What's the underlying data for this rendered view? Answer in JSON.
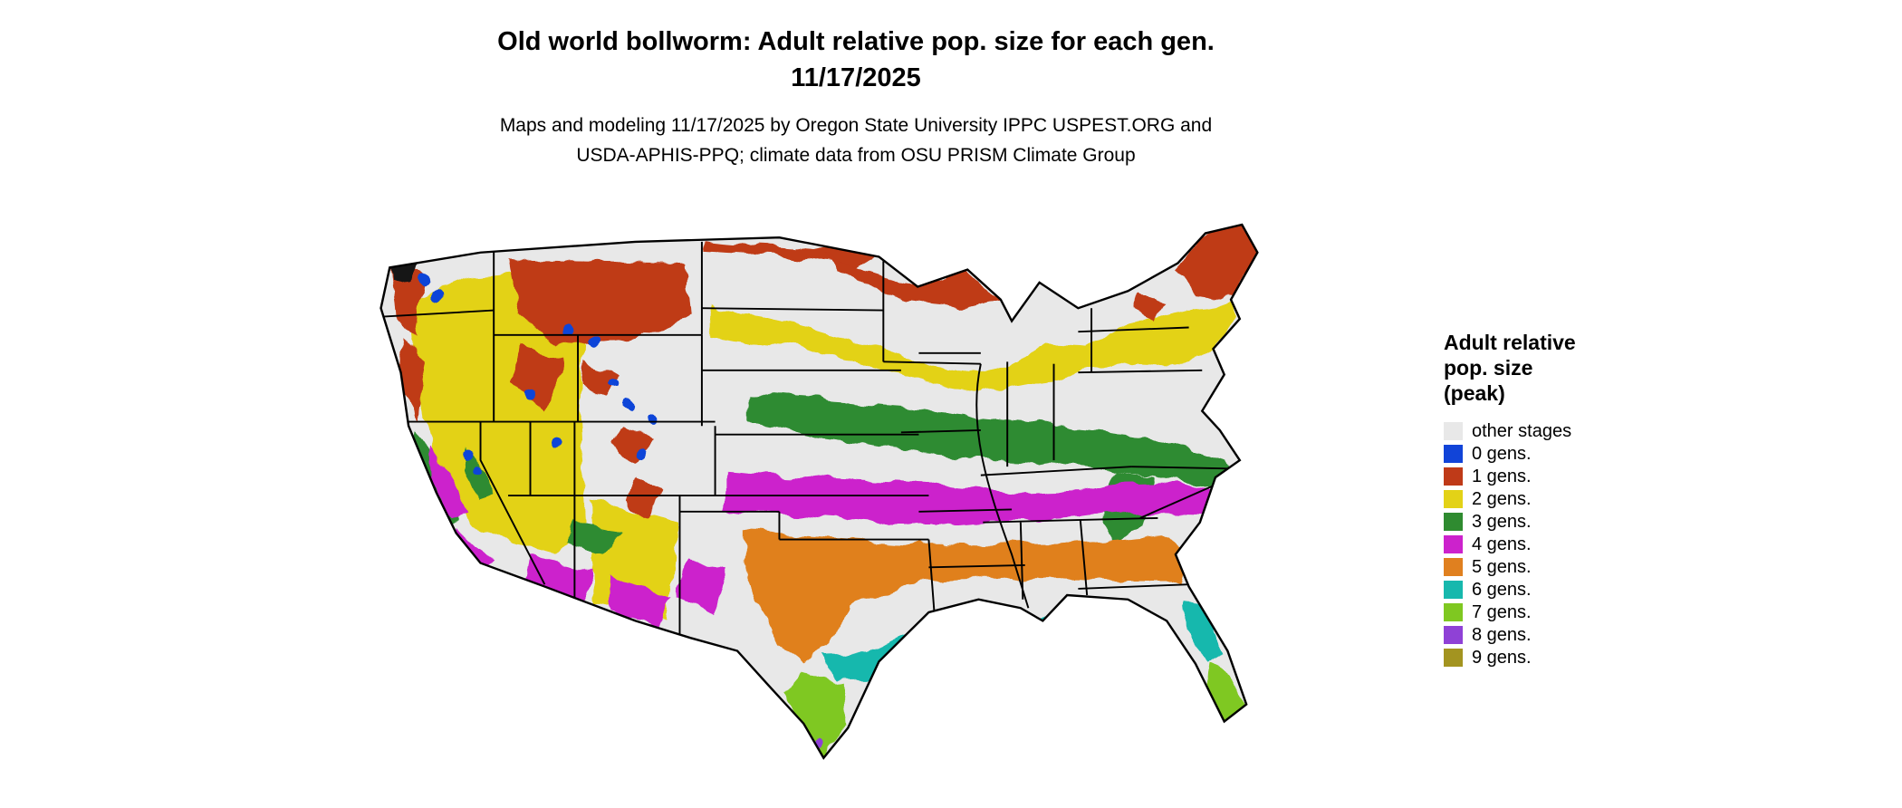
{
  "title": {
    "line1": "Old world bollworm: Adult relative pop. size for each gen.",
    "line2": "11/17/2025"
  },
  "subtitle": {
    "line1": "Maps and modeling 11/17/2025 by Oregon State University IPPC USPEST.ORG and",
    "line2": "USDA-APHIS-PPQ; climate data from OSU PRISM Climate Group"
  },
  "legend": {
    "title_lines": [
      "Adult relative",
      "pop. size",
      "(peak)"
    ],
    "items": [
      {
        "key": "other",
        "label": "other stages",
        "color": "#e8e8e8"
      },
      {
        "key": "g0",
        "label": "0 gens.",
        "color": "#1144d8"
      },
      {
        "key": "g1",
        "label": "1 gens.",
        "color": "#bf3a18"
      },
      {
        "key": "g2",
        "label": "2 gens.",
        "color": "#e3d217"
      },
      {
        "key": "g3",
        "label": "3 gens.",
        "color": "#2f8b30"
      },
      {
        "key": "g4",
        "label": "4 gens.",
        "color": "#cc22cc"
      },
      {
        "key": "g5",
        "label": "5 gens.",
        "color": "#e0801f"
      },
      {
        "key": "g6",
        "label": "6 gens.",
        "color": "#17b8ad"
      },
      {
        "key": "g7",
        "label": "7 gens.",
        "color": "#7fc821"
      },
      {
        "key": "g8",
        "label": "8 gens.",
        "color": "#8f41d6"
      },
      {
        "key": "g9",
        "label": "9 gens.",
        "color": "#a39420"
      }
    ]
  }
}
